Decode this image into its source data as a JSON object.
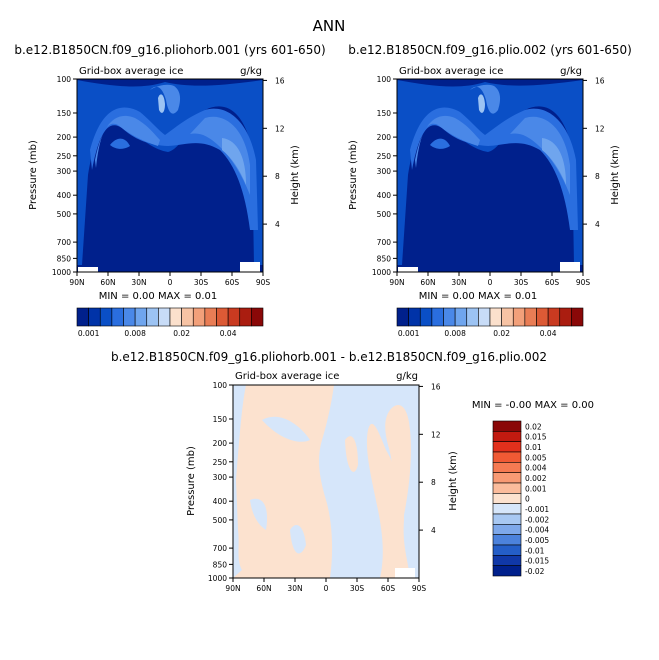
{
  "figure": {
    "title": "ANN"
  },
  "panels": [
    {
      "id": "p1",
      "title": "b.e12.B1850CN.f09_g16.pliohorb.001 (yrs 601-650)",
      "subtitle_left": "Grid-box average ice",
      "subtitle_right": "g/kg",
      "ylabel": "Pressure (mb)",
      "ylabel_right": "Height (km)",
      "stats": "MIN =   0.00   MAX =    0.01"
    },
    {
      "id": "p2",
      "title": "b.e12.B1850CN.f09_g16.plio.002 (yrs 601-650)",
      "subtitle_left": "Grid-box average ice",
      "subtitle_right": "g/kg",
      "ylabel": "Pressure (mb)",
      "ylabel_right": "Height (km)",
      "stats": "MIN =   0.00   MAX =    0.01"
    },
    {
      "id": "p3",
      "title": "b.e12.B1850CN.f09_g16.pliohorb.001 - b.e12.B1850CN.f09_g16.plio.002",
      "subtitle_left": "Grid-box average ice",
      "subtitle_right": "g/kg",
      "ylabel": "Pressure (mb)",
      "ylabel_right": "Height (km)",
      "stats": "MIN =   -0.00   MAX =    0.00"
    }
  ],
  "chart_data": [
    {
      "type": "heatmap",
      "title": "b.e12.B1850CN.f09_g16.pliohorb.001 (yrs 601-650)",
      "xlabel": "",
      "ylabel": "Pressure (mb)",
      "x_ticks": [
        "90N",
        "60N",
        "30N",
        "0",
        "30S",
        "60S",
        "90S"
      ],
      "y_ticks": [
        "100",
        "150",
        "200",
        "250",
        "300",
        "400",
        "500",
        "700",
        "850",
        "1000"
      ],
      "y_ticks_right": [
        "16",
        "12",
        "8",
        "4"
      ],
      "colorbar_labels": [
        "0.001",
        "0.008",
        "0.02",
        "0.04"
      ],
      "min": 0.0,
      "max": 0.01
    },
    {
      "type": "heatmap",
      "title": "b.e12.B1850CN.f09_g16.plio.002 (yrs 601-650)",
      "xlabel": "",
      "ylabel": "Pressure (mb)",
      "x_ticks": [
        "90N",
        "60N",
        "30N",
        "0",
        "30S",
        "60S",
        "90S"
      ],
      "y_ticks": [
        "100",
        "150",
        "200",
        "250",
        "300",
        "400",
        "500",
        "700",
        "850",
        "1000"
      ],
      "y_ticks_right": [
        "16",
        "12",
        "8",
        "4"
      ],
      "colorbar_labels": [
        "0.001",
        "0.008",
        "0.02",
        "0.04"
      ],
      "min": 0.0,
      "max": 0.01
    },
    {
      "type": "heatmap",
      "title": "b.e12.B1850CN.f09_g16.pliohorb.001 - b.e12.B1850CN.f09_g16.plio.002",
      "xlabel": "",
      "ylabel": "Pressure (mb)",
      "x_ticks": [
        "90N",
        "60N",
        "30N",
        "0",
        "30S",
        "60S",
        "90S"
      ],
      "y_ticks": [
        "100",
        "150",
        "200",
        "250",
        "300",
        "400",
        "500",
        "700",
        "850",
        "1000"
      ],
      "y_ticks_right": [
        "16",
        "12",
        "8",
        "4"
      ],
      "colorbar_labels": [
        "0.02",
        "0.015",
        "0.01",
        "0.005",
        "0.004",
        "0.002",
        "0.001",
        "0",
        "-0.001",
        "-0.002",
        "-0.004",
        "-0.005",
        "-0.01",
        "-0.015",
        "-0.02"
      ],
      "min": -0.0,
      "max": 0.0
    }
  ],
  "colors": {
    "seq_colorbar": [
      "#00208c",
      "#0033a8",
      "#0a4fc6",
      "#2a6edf",
      "#4a88e8",
      "#6fa5ee",
      "#9cc3f3",
      "#c8dcf7",
      "#fbe0cc",
      "#f7c3a4",
      "#f2a07a",
      "#e97d55",
      "#dc5a35",
      "#c93a20",
      "#aa1d10",
      "#8a0808"
    ],
    "diff_colorbar": [
      "#8a0808",
      "#c21a10",
      "#e2301c",
      "#f05a34",
      "#f57a52",
      "#f89a74",
      "#fbbc9c",
      "#fce2cf",
      "#d6e6fa",
      "#a8c8f2",
      "#7ea8ea",
      "#4c82dc",
      "#245ec8",
      "#1038a8",
      "#00208c"
    ],
    "field_dark": "#00208c",
    "diff_pos": "#fce2cf",
    "diff_neg": "#d6e6fa"
  }
}
